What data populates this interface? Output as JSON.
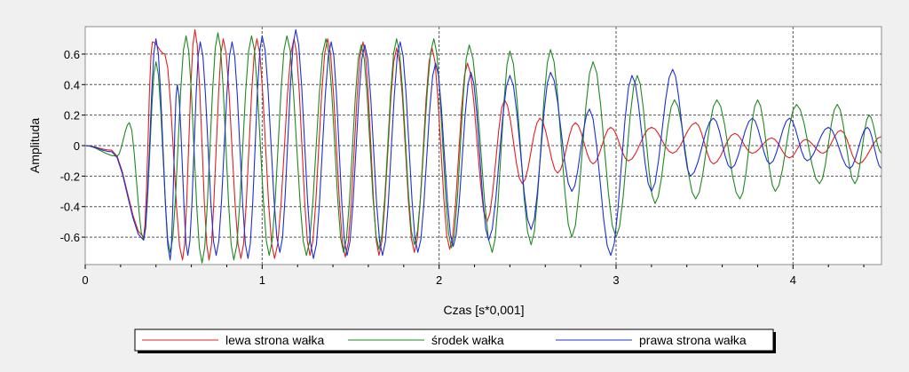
{
  "chart_data": {
    "type": "line",
    "title": "",
    "xlabel": "Czas [s*0,001]",
    "ylabel": "Amplituda",
    "xlim": [
      0,
      4.5
    ],
    "ylim": [
      -0.78,
      0.78
    ],
    "x_ticks": [
      0,
      1,
      2,
      3,
      4
    ],
    "x_tick_labels": [
      "0",
      "1",
      "2",
      "3",
      "4"
    ],
    "y_ticks": [
      0.6,
      0.4,
      0.2,
      0,
      -0.2,
      -0.4,
      -0.6
    ],
    "y_tick_labels": [
      "0.6",
      "0.4",
      "0.2",
      "0",
      "-0.2",
      "-0.4",
      "-0.6"
    ],
    "grid": "dashed",
    "legend_position": "bottom",
    "series": [
      {
        "name": "lewa strona wałka",
        "color": "#e02020",
        "peaks": [
          [
            0,
            0.0
          ],
          [
            0.15,
            -0.03
          ],
          [
            0.33,
            -0.6
          ],
          [
            0.38,
            0.68
          ],
          [
            0.45,
            0.6
          ],
          [
            0.55,
            -0.75
          ],
          [
            0.62,
            0.76
          ],
          [
            0.7,
            -0.75
          ],
          [
            0.78,
            0.7
          ],
          [
            0.88,
            -0.74
          ],
          [
            0.97,
            0.7
          ],
          [
            1.07,
            -0.74
          ],
          [
            1.18,
            0.7
          ],
          [
            1.27,
            -0.72
          ],
          [
            1.37,
            0.7
          ],
          [
            1.47,
            -0.73
          ],
          [
            1.57,
            0.68
          ],
          [
            1.66,
            -0.72
          ],
          [
            1.76,
            0.64
          ],
          [
            1.86,
            -0.7
          ],
          [
            1.96,
            0.64
          ],
          [
            2.06,
            -0.68
          ],
          [
            2.16,
            0.54
          ],
          [
            2.27,
            -0.5
          ],
          [
            2.37,
            0.3
          ],
          [
            2.47,
            -0.25
          ],
          [
            2.57,
            0.18
          ],
          [
            2.67,
            -0.18
          ],
          [
            2.77,
            0.15
          ],
          [
            2.87,
            -0.12
          ],
          [
            2.97,
            0.12
          ],
          [
            3.07,
            -0.1
          ],
          [
            3.2,
            0.12
          ],
          [
            3.32,
            -0.05
          ],
          [
            3.45,
            0.15
          ],
          [
            3.55,
            -0.12
          ],
          [
            3.67,
            0.08
          ],
          [
            3.77,
            -0.05
          ],
          [
            3.88,
            0.05
          ],
          [
            3.98,
            -0.08
          ],
          [
            4.07,
            0.04
          ],
          [
            4.17,
            -0.05
          ],
          [
            4.27,
            0.1
          ],
          [
            4.37,
            -0.12
          ],
          [
            4.5,
            0.06
          ]
        ]
      },
      {
        "name": "środek wałka",
        "color": "#1e8a1e",
        "peaks": [
          [
            0,
            0.0
          ],
          [
            0.18,
            -0.07
          ],
          [
            0.25,
            0.15
          ],
          [
            0.33,
            -0.62
          ],
          [
            0.4,
            0.55
          ],
          [
            0.48,
            -0.7
          ],
          [
            0.57,
            0.72
          ],
          [
            0.66,
            -0.77
          ],
          [
            0.75,
            0.74
          ],
          [
            0.84,
            -0.75
          ],
          [
            0.94,
            0.72
          ],
          [
            1.04,
            -0.72
          ],
          [
            1.14,
            0.72
          ],
          [
            1.25,
            -0.72
          ],
          [
            1.36,
            0.7
          ],
          [
            1.46,
            -0.7
          ],
          [
            1.56,
            0.66
          ],
          [
            1.66,
            -0.68
          ],
          [
            1.76,
            0.7
          ],
          [
            1.86,
            -0.65
          ],
          [
            1.97,
            0.7
          ],
          [
            2.07,
            -0.67
          ],
          [
            2.17,
            0.66
          ],
          [
            2.3,
            -0.7
          ],
          [
            2.4,
            0.62
          ],
          [
            2.52,
            -0.65
          ],
          [
            2.63,
            0.63
          ],
          [
            2.75,
            -0.6
          ],
          [
            2.87,
            0.55
          ],
          [
            3.0,
            -0.6
          ],
          [
            3.12,
            0.46
          ],
          [
            3.22,
            -0.38
          ],
          [
            3.33,
            0.3
          ],
          [
            3.45,
            -0.35
          ],
          [
            3.57,
            0.3
          ],
          [
            3.7,
            -0.35
          ],
          [
            3.8,
            0.3
          ],
          [
            3.9,
            -0.3
          ],
          [
            4.02,
            0.27
          ],
          [
            4.15,
            -0.25
          ],
          [
            4.25,
            0.27
          ],
          [
            4.35,
            -0.25
          ],
          [
            4.43,
            0.2
          ],
          [
            4.5,
            -0.05
          ]
        ]
      },
      {
        "name": "prawa strona wałka",
        "color": "#1c2fd4",
        "peaks": [
          [
            0,
            0.0
          ],
          [
            0.15,
            -0.04
          ],
          [
            0.33,
            -0.62
          ],
          [
            0.4,
            0.7
          ],
          [
            0.48,
            -0.75
          ],
          [
            0.52,
            0.4
          ],
          [
            0.58,
            -0.72
          ],
          [
            0.65,
            0.68
          ],
          [
            0.74,
            -0.72
          ],
          [
            0.83,
            0.68
          ],
          [
            0.92,
            -0.74
          ],
          [
            1.0,
            0.72
          ],
          [
            1.1,
            -0.7
          ],
          [
            1.19,
            0.76
          ],
          [
            1.29,
            -0.74
          ],
          [
            1.39,
            0.68
          ],
          [
            1.48,
            -0.72
          ],
          [
            1.58,
            0.66
          ],
          [
            1.68,
            -0.72
          ],
          [
            1.78,
            0.68
          ],
          [
            1.88,
            -0.7
          ],
          [
            1.98,
            0.54
          ],
          [
            2.08,
            -0.66
          ],
          [
            2.18,
            0.48
          ],
          [
            2.28,
            -0.62
          ],
          [
            2.4,
            0.46
          ],
          [
            2.52,
            -0.55
          ],
          [
            2.63,
            0.48
          ],
          [
            2.75,
            -0.3
          ],
          [
            2.85,
            0.24
          ],
          [
            2.97,
            -0.72
          ],
          [
            3.09,
            0.46
          ],
          [
            3.2,
            -0.3
          ],
          [
            3.32,
            0.5
          ],
          [
            3.42,
            -0.2
          ],
          [
            3.55,
            0.18
          ],
          [
            3.65,
            -0.15
          ],
          [
            3.77,
            0.18
          ],
          [
            3.87,
            -0.12
          ],
          [
            3.98,
            0.18
          ],
          [
            4.08,
            -0.1
          ],
          [
            4.2,
            0.12
          ],
          [
            4.32,
            -0.15
          ],
          [
            4.42,
            0.12
          ],
          [
            4.5,
            -0.15
          ]
        ]
      }
    ]
  }
}
